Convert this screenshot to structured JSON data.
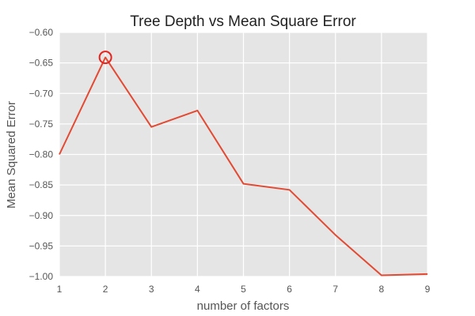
{
  "chart_data": {
    "type": "line",
    "title": "Tree Depth vs Mean Square Error",
    "xlabel": "number of factors",
    "ylabel": "Mean Squared Error",
    "xlim": [
      1,
      9
    ],
    "ylim": [
      -1.0,
      -0.6
    ],
    "x_ticks": [
      "1",
      "2",
      "3",
      "4",
      "5",
      "6",
      "7",
      "8",
      "9"
    ],
    "y_ticks": [
      "−0.60",
      "−0.65",
      "−0.70",
      "−0.75",
      "−0.80",
      "−0.85",
      "−0.90",
      "−0.95",
      "−1.00"
    ],
    "y_tick_values": [
      -0.6,
      -0.65,
      -0.7,
      -0.75,
      -0.8,
      -0.85,
      -0.9,
      -0.95,
      -1.0
    ],
    "grid": true,
    "series": [
      {
        "x": [
          1,
          2,
          3,
          4,
          5,
          6,
          7,
          8,
          9
        ],
        "y": [
          -0.8,
          -0.641,
          -0.755,
          -0.728,
          -0.848,
          -0.858,
          -0.932,
          -0.998,
          -0.996
        ],
        "color": "#E24A33"
      }
    ],
    "highlight": {
      "x": 2,
      "y": -0.641,
      "color": "#E8221C"
    },
    "background_color": "#E5E5E5",
    "grid_color": "#FFFFFF"
  }
}
